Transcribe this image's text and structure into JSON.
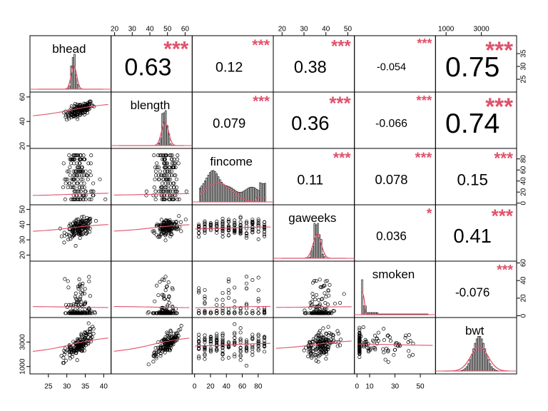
{
  "chart_data": {
    "type": "scatter-matrix",
    "variables": [
      "bhead",
      "blength",
      "fincome",
      "gaweeks",
      "smoken",
      "bwt"
    ],
    "correlations": [
      {
        "pair": [
          "bhead",
          "blength"
        ],
        "r": "0.63",
        "stars": "***",
        "scale": 1.0
      },
      {
        "pair": [
          "bhead",
          "fincome"
        ],
        "r": "0.12",
        "stars": "***",
        "scale": 0.45
      },
      {
        "pair": [
          "bhead",
          "gaweeks"
        ],
        "r": "0.38",
        "stars": "***",
        "scale": 0.6
      },
      {
        "pair": [
          "bhead",
          "smoken"
        ],
        "r": "-0.054",
        "stars": "***",
        "scale": 0.25
      },
      {
        "pair": [
          "bhead",
          "bwt"
        ],
        "r": "0.75",
        "stars": "***",
        "scale": 1.2
      },
      {
        "pair": [
          "blength",
          "fincome"
        ],
        "r": "0.079",
        "stars": "***",
        "scale": 0.4
      },
      {
        "pair": [
          "blength",
          "gaweeks"
        ],
        "r": "0.36",
        "stars": "***",
        "scale": 0.75
      },
      {
        "pair": [
          "blength",
          "smoken"
        ],
        "r": "-0.066",
        "stars": "***",
        "scale": 0.3
      },
      {
        "pair": [
          "blength",
          "bwt"
        ],
        "r": "0.74",
        "stars": "***",
        "scale": 1.2
      },
      {
        "pair": [
          "fincome",
          "gaweeks"
        ],
        "r": "0.11",
        "stars": "***",
        "scale": 0.45
      },
      {
        "pair": [
          "fincome",
          "smoken"
        ],
        "r": "0.078",
        "stars": "***",
        "scale": 0.4
      },
      {
        "pair": [
          "fincome",
          "bwt"
        ],
        "r": "0.15",
        "stars": "***",
        "scale": 0.55
      },
      {
        "pair": [
          "gaweeks",
          "smoken"
        ],
        "r": "0.036",
        "stars": "*",
        "scale": 0.35
      },
      {
        "pair": [
          "gaweeks",
          "bwt"
        ],
        "r": "0.41",
        "stars": "***",
        "scale": 0.75
      },
      {
        "pair": [
          "smoken",
          "bwt"
        ],
        "r": "-0.076",
        "stars": "***",
        "scale": 0.35
      }
    ],
    "axes": {
      "bottom": [
        {
          "col": 0,
          "ticks": [
            25,
            30,
            35,
            40
          ],
          "range": [
            20,
            42
          ]
        },
        {
          "col": 2,
          "ticks": [
            0,
            20,
            40,
            60,
            80
          ],
          "range": [
            -3,
            99
          ]
        },
        {
          "col": 4,
          "ticks": [
            0,
            10,
            30,
            50
          ],
          "range": [
            -2,
            62
          ]
        }
      ],
      "top": [
        {
          "col": 1,
          "ticks": [
            20,
            30,
            40,
            50,
            60
          ],
          "range": [
            18,
            64
          ]
        },
        {
          "col": 3,
          "ticks": [
            20,
            30,
            40,
            50
          ],
          "range": [
            16,
            53
          ]
        },
        {
          "col": 5,
          "ticks": [
            1000,
            3000
          ],
          "range": [
            400,
            5000
          ]
        }
      ],
      "left": [
        {
          "row": 1,
          "ticks": [
            20,
            40,
            60
          ],
          "range": [
            18,
            64
          ]
        },
        {
          "row": 3,
          "ticks": [
            20,
            30,
            40,
            50
          ],
          "range": [
            16,
            53
          ]
        },
        {
          "row": 5,
          "ticks": [
            1000,
            3000
          ],
          "range": [
            400,
            5000
          ]
        }
      ],
      "right": [
        {
          "row": 0,
          "ticks": [
            25,
            30,
            35
          ],
          "range": [
            20,
            42
          ]
        },
        {
          "row": 2,
          "ticks": [
            0,
            20,
            40,
            60,
            80
          ],
          "range": [
            -3,
            99
          ]
        },
        {
          "row": 4,
          "ticks": [
            0,
            20,
            40,
            60
          ],
          "range": [
            -2,
            62
          ]
        }
      ]
    },
    "colors": {
      "points": "#000000",
      "smooth": "#DF536B",
      "stars": "#DF536B",
      "hist_fill": "#D3D3D3"
    }
  }
}
